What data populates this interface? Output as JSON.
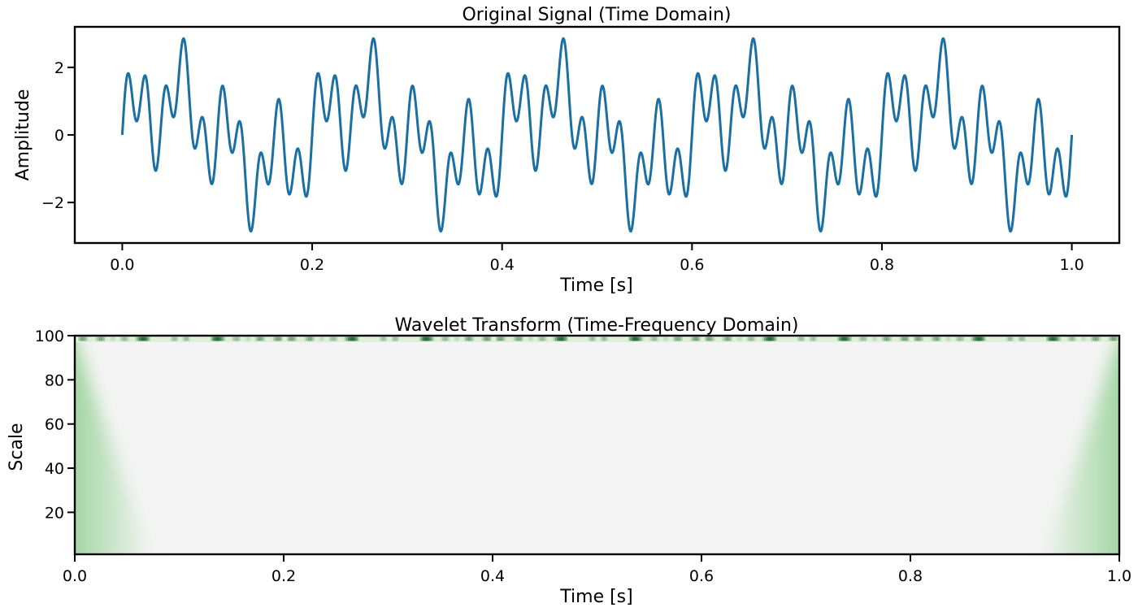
{
  "colors": {
    "signal": "#1a6fa3",
    "scalogram_background": "#f4f4f4",
    "scalogram_low": "#7fc97f",
    "scalogram_high": "#0a5a1e"
  },
  "chart_data": [
    {
      "type": "line",
      "title": "Original Signal (Time Domain)",
      "xlabel": "Time [s]",
      "ylabel": "Amplitude",
      "xlim": [
        -0.05,
        1.05
      ],
      "ylim": [
        -3.2,
        3.2
      ],
      "x_ticks": [
        0.0,
        0.2,
        0.4,
        0.6,
        0.8,
        1.0
      ],
      "x_tick_labels": [
        "0.0",
        "0.2",
        "0.4",
        "0.6",
        "0.8",
        "1.0"
      ],
      "y_ticks": [
        -2,
        0,
        2
      ],
      "y_tick_labels": [
        "−2",
        "0",
        "2"
      ],
      "grid": false,
      "series": [
        {
          "x_range": [
            0.0,
            1.0
          ],
          "components": [
            {
              "frequency_hz": 5,
              "amplitude": 1
            },
            {
              "frequency_hz": 20,
              "amplitude": 1
            },
            {
              "frequency_hz": 50,
              "amplitude": 1
            }
          ]
        }
      ]
    },
    {
      "type": "heatmap",
      "title": "Wavelet Transform (Time-Frequency Domain)",
      "xlabel": "Time [s]",
      "ylabel": "Scale",
      "xlim": [
        0.0,
        1.0
      ],
      "ylim": [
        1,
        100
      ],
      "x_ticks": [
        0.0,
        0.2,
        0.4,
        0.6,
        0.8,
        1.0
      ],
      "x_tick_labels": [
        "0.0",
        "0.2",
        "0.4",
        "0.6",
        "0.8",
        "1.0"
      ],
      "y_ticks": [
        20,
        40,
        60,
        80,
        100
      ],
      "y_tick_labels": [
        "20",
        "40",
        "60",
        "80",
        "100"
      ],
      "colormap": "Greens",
      "grid": false
    }
  ]
}
